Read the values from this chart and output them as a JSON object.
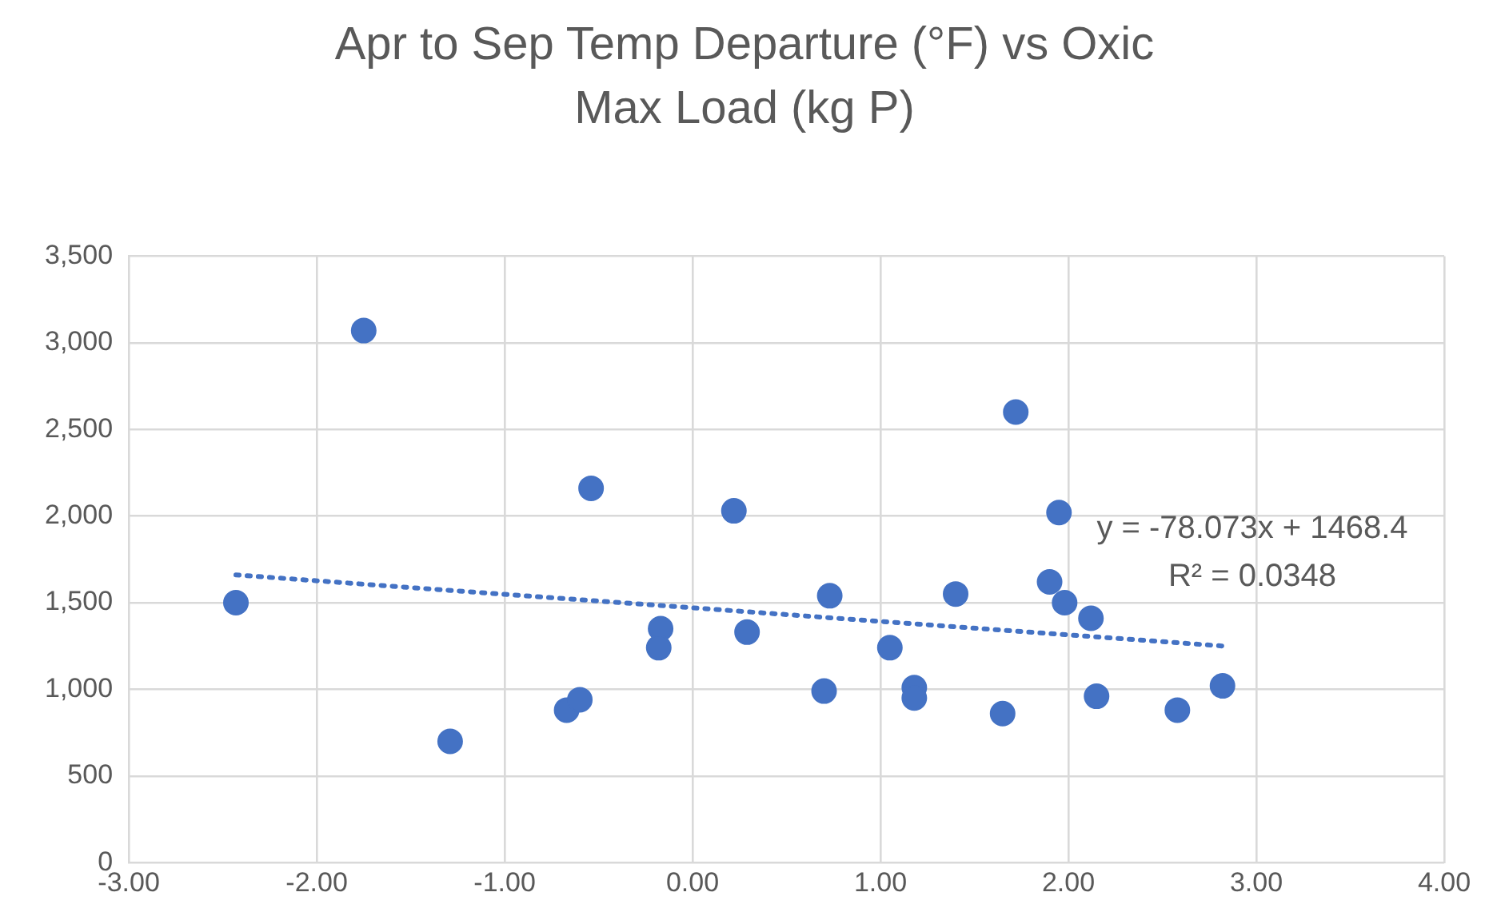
{
  "chart_data": {
    "type": "scatter",
    "title": "Apr to Sep Temp Departure (°F) vs Oxic Max Load (kg P)",
    "x": [
      -2.43,
      -1.75,
      -1.29,
      -0.67,
      -0.6,
      -0.54,
      -0.17,
      -0.18,
      0.22,
      0.29,
      0.7,
      0.73,
      1.05,
      1.18,
      1.18,
      1.4,
      1.65,
      1.72,
      1.95,
      1.9,
      1.98,
      2.12,
      2.15,
      2.58,
      2.82
    ],
    "series": [
      {
        "color": "#4472c4",
        "marker": "circle",
        "values": [
          1500,
          3070,
          700,
          880,
          940,
          2160,
          1350,
          1240,
          2030,
          1330,
          990,
          1540,
          1240,
          1010,
          950,
          1550,
          860,
          2600,
          2020,
          1620,
          1500,
          1410,
          960,
          880,
          1020
        ]
      },
      {
        "type": "line",
        "x": [
          -2.43,
          2.82
        ],
        "values": [
          1660,
          1250
        ],
        "color": "#4472c4",
        "line_style": "dotted",
        "marker": "none"
      }
    ],
    "grid": true,
    "xlim": [
      -3,
      4
    ],
    "xticks": [
      {
        "value": -3,
        "label": "-3.00"
      },
      {
        "value": -2,
        "label": "-2.00"
      },
      {
        "value": -1,
        "label": "-1.00"
      },
      {
        "value": 0,
        "label": "0.00"
      },
      {
        "value": 1,
        "label": "1.00"
      },
      {
        "value": 2,
        "label": "2.00"
      },
      {
        "value": 3,
        "label": "3.00"
      },
      {
        "value": 4,
        "label": "4.00"
      }
    ],
    "ylim": [
      0,
      3500
    ],
    "yticks": [
      0,
      500,
      {
        "value": 1000,
        "label": "1,000"
      },
      {
        "value": 1500,
        "label": "1,500"
      },
      {
        "value": 2000,
        "label": "2,000"
      },
      {
        "value": 2500,
        "label": "2,500"
      },
      {
        "value": 3000,
        "label": "3,000"
      },
      {
        "value": 3500,
        "label": "3,500"
      }
    ],
    "annotations": [
      "y = -78.073x + 1468.4",
      "R² = 0.0348"
    ]
  }
}
